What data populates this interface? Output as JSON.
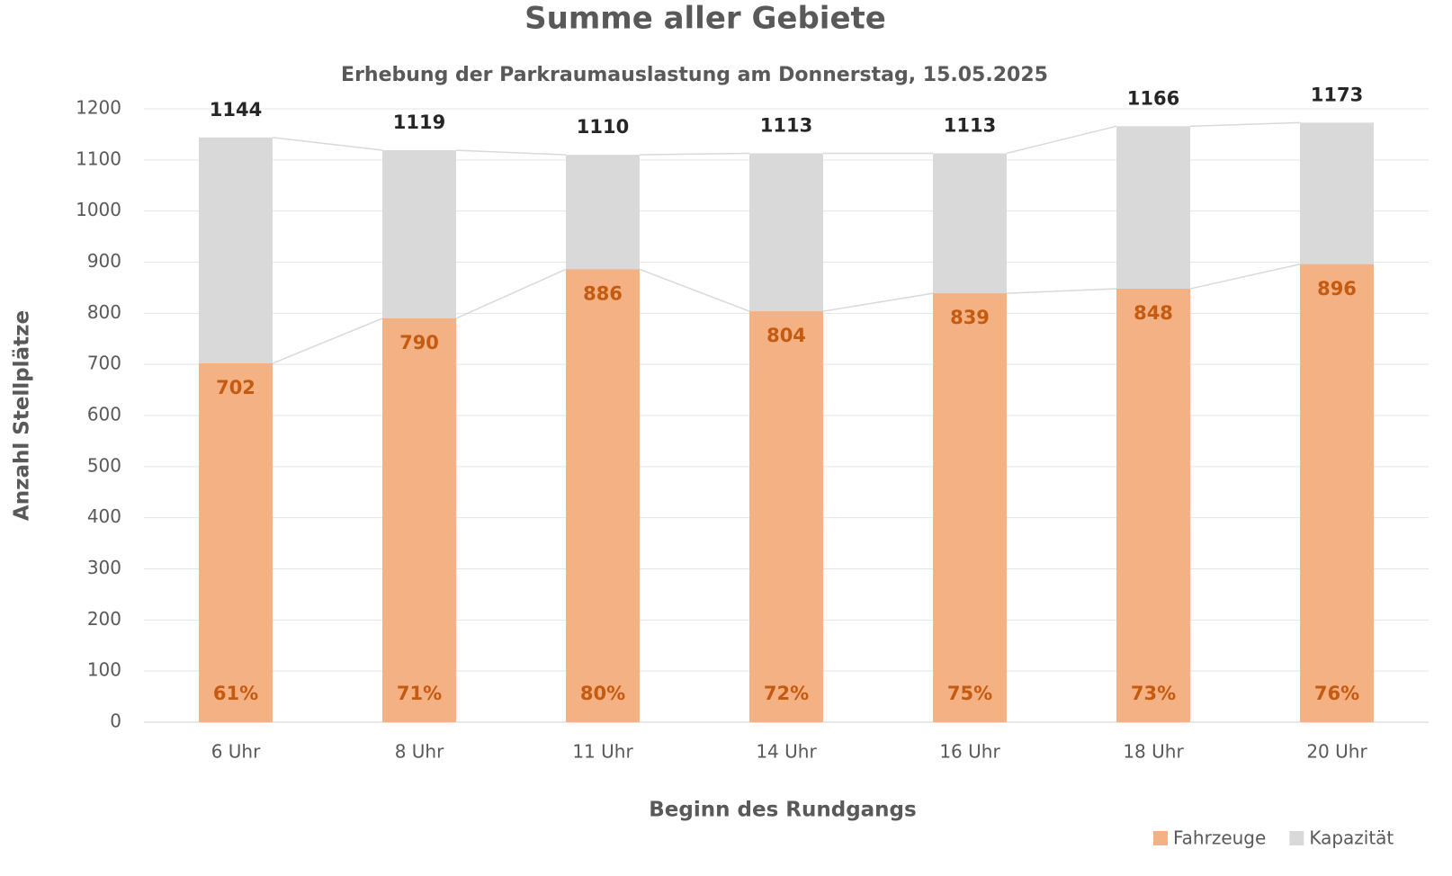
{
  "chart_data": {
    "type": "bar",
    "title": "Summe aller Gebiete",
    "subtitle": "Erhebung der Parkraumauslastung am Donnerstag, 15.05.2025",
    "x_label": "Beginn des Rundgangs",
    "y_label": "Anzahl Stellplätze",
    "categories": [
      "6 Uhr",
      "8 Uhr",
      "11 Uhr",
      "14 Uhr",
      "16 Uhr",
      "18 Uhr",
      "20 Uhr"
    ],
    "series": [
      {
        "name": "Fahrzeuge",
        "color": "#f4b183",
        "label_color": "#c55a11",
        "values": [
          702,
          790,
          886,
          804,
          839,
          848,
          896
        ]
      },
      {
        "name": "Kapazität",
        "color": "#d9d9d9",
        "label_color": "#262626",
        "values": [
          1144,
          1119,
          1110,
          1113,
          1113,
          1166,
          1173
        ]
      }
    ],
    "share_labels": [
      "61%",
      "71%",
      "80%",
      "72%",
      "75%",
      "73%",
      "76%"
    ],
    "ylim": [
      0,
      1200
    ],
    "yticks": [
      0,
      100,
      200,
      300,
      400,
      500,
      600,
      700,
      800,
      900,
      1000,
      1100,
      1200
    ],
    "grid": true,
    "legend": "bottom-right"
  }
}
